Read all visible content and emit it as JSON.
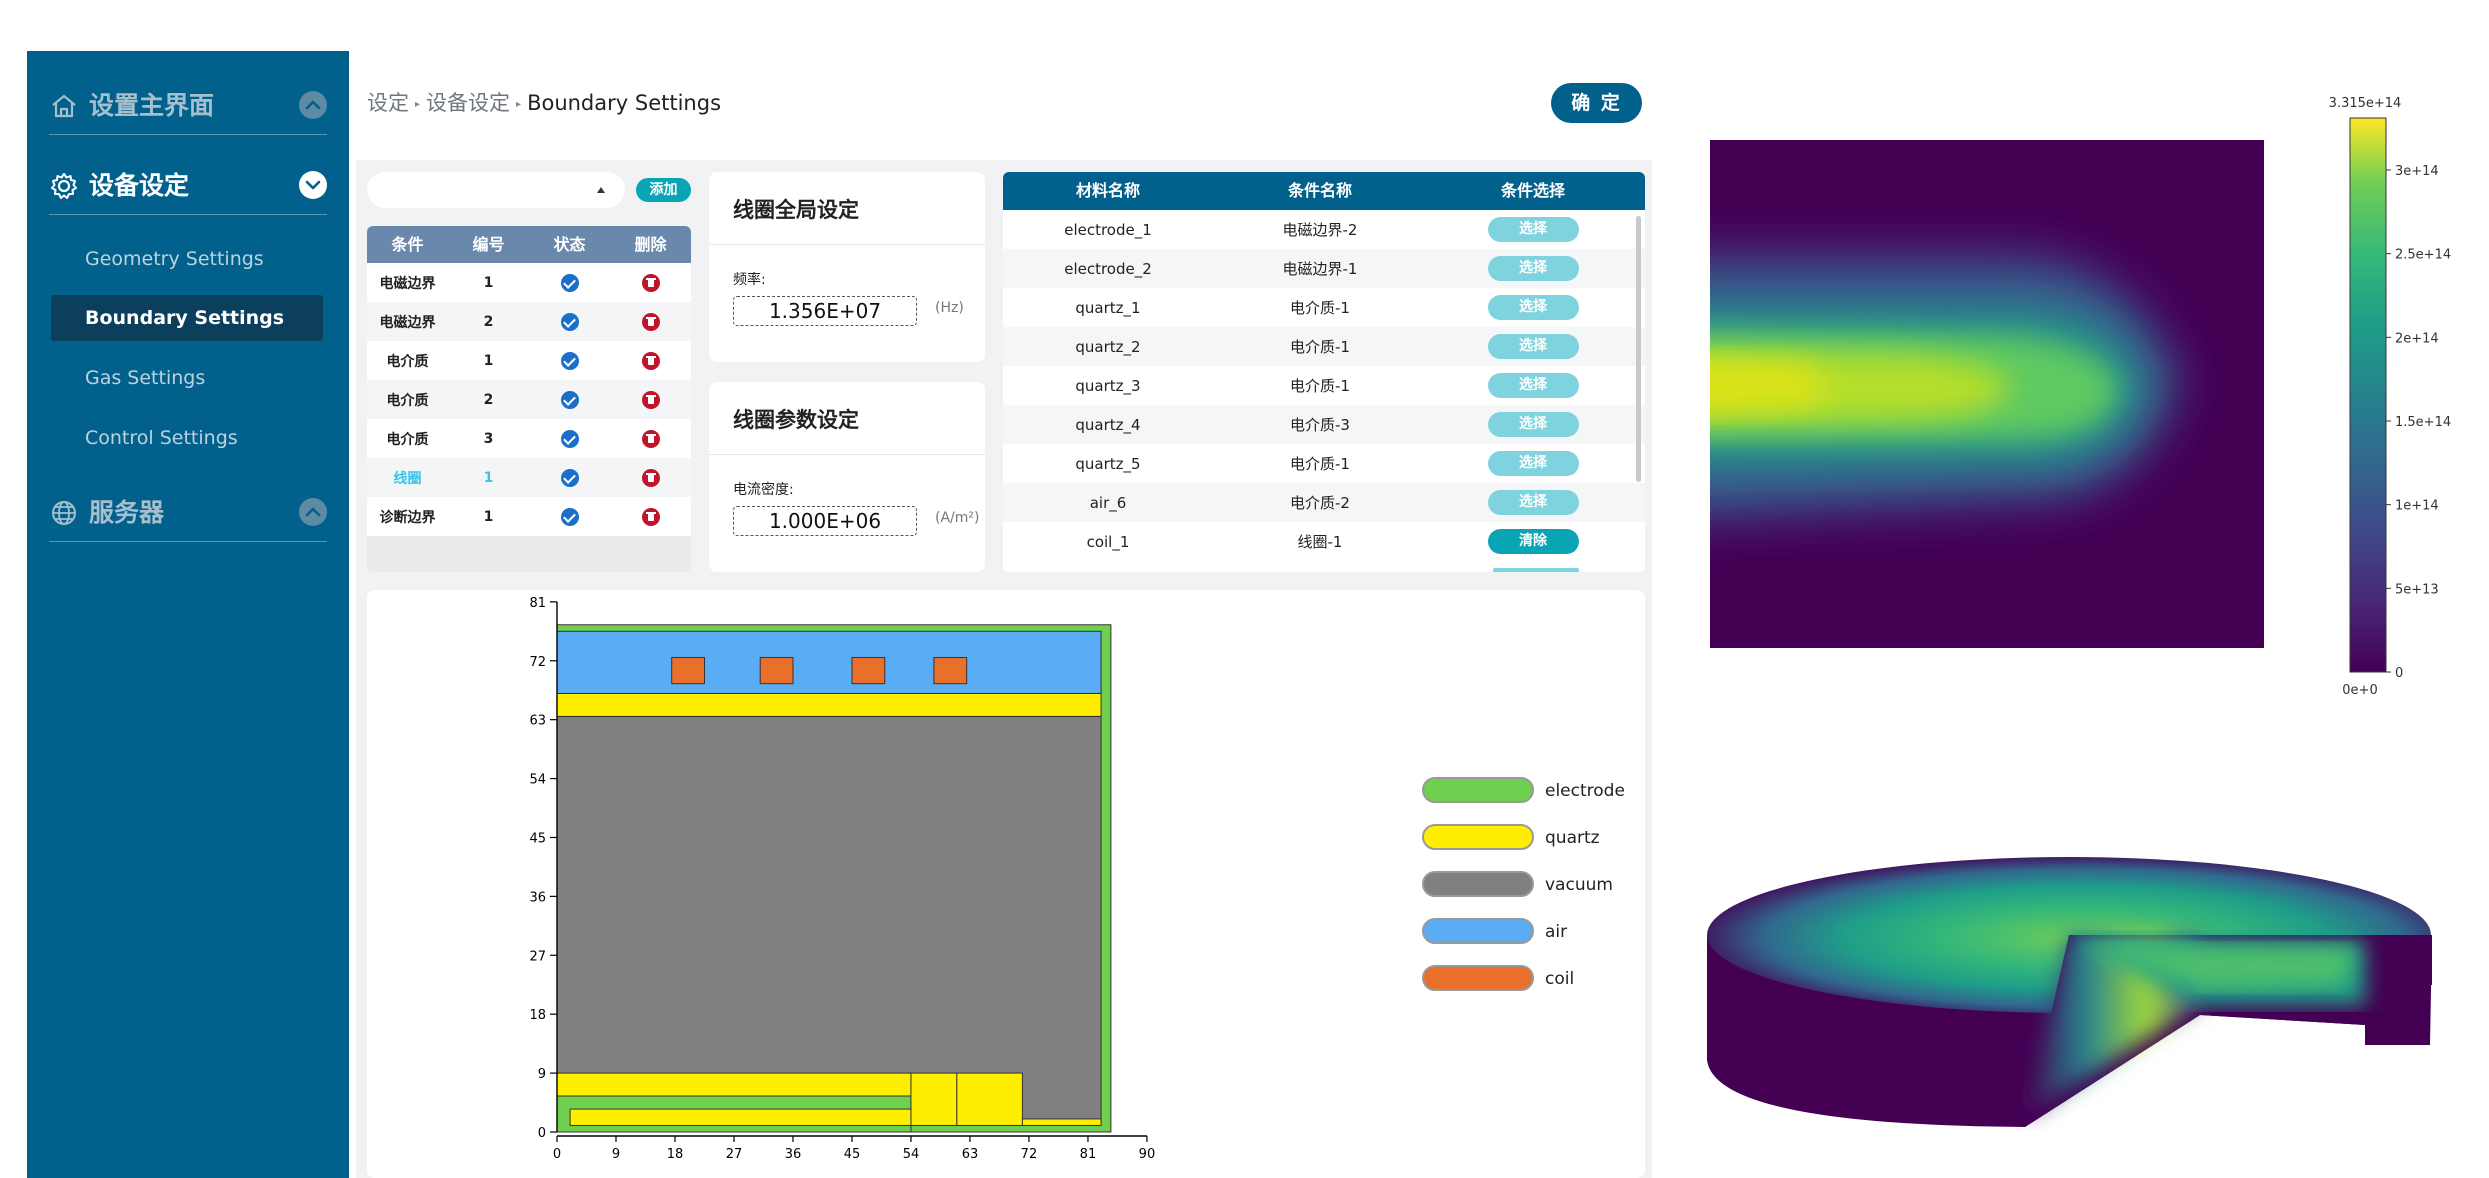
{
  "sidebar": {
    "sections": [
      {
        "label": "设置主界面",
        "icon": "home-icon",
        "expanded": false
      },
      {
        "label": "设备设定",
        "icon": "gear-icon",
        "expanded": true
      },
      {
        "label": "服务器",
        "icon": "globe-icon",
        "expanded": false
      }
    ],
    "sub_items": [
      "Geometry Settings",
      "Boundary Settings",
      "Gas Settings",
      "Control Settings"
    ],
    "active_sub_item": "Boundary Settings"
  },
  "header": {
    "breadcrumb": [
      "设定",
      "设备设定",
      "Boundary Settings"
    ],
    "confirm_label": "确 定"
  },
  "condition_panel": {
    "select_value": "",
    "add_label": "添加",
    "columns": [
      "条件",
      "编号",
      "状态",
      "删除"
    ],
    "rows": [
      {
        "name": "电磁边界",
        "id": "1",
        "highlight": false
      },
      {
        "name": "电磁边界",
        "id": "2",
        "highlight": false
      },
      {
        "name": "电介质",
        "id": "1",
        "highlight": false
      },
      {
        "name": "电介质",
        "id": "2",
        "highlight": false
      },
      {
        "name": "电介质",
        "id": "3",
        "highlight": false
      },
      {
        "name": "线圈",
        "id": "1",
        "highlight": true
      },
      {
        "name": "诊断边界",
        "id": "1",
        "highlight": false
      }
    ]
  },
  "coil_global": {
    "title": "线圈全局设定",
    "field_label": "频率:",
    "value": "1.356E+07",
    "unit": "(Hz)"
  },
  "coil_params": {
    "title": "线圈参数设定",
    "field_label": "电流密度:",
    "value": "1.000E+06",
    "unit": "(A/m²)"
  },
  "material_table": {
    "columns": [
      "材料名称",
      "条件名称",
      "条件选择"
    ],
    "rows": [
      {
        "material": "electrode_1",
        "condition": "电磁边界-2",
        "action": "选择"
      },
      {
        "material": "electrode_2",
        "condition": "电磁边界-1",
        "action": "选择"
      },
      {
        "material": "quartz_1",
        "condition": "电介质-1",
        "action": "选择"
      },
      {
        "material": "quartz_2",
        "condition": "电介质-1",
        "action": "选择"
      },
      {
        "material": "quartz_3",
        "condition": "电介质-1",
        "action": "选择"
      },
      {
        "material": "quartz_4",
        "condition": "电介质-3",
        "action": "选择"
      },
      {
        "material": "quartz_5",
        "condition": "电介质-1",
        "action": "选择"
      },
      {
        "material": "air_6",
        "condition": "电介质-2",
        "action": "选择"
      },
      {
        "material": "coil_1",
        "condition": "线圈-1",
        "action": "清除"
      }
    ]
  },
  "geometry": {
    "x_ticks": [
      "0",
      "9",
      "18",
      "27",
      "36",
      "45",
      "54",
      "63",
      "72",
      "81",
      "90"
    ],
    "y_ticks": [
      "0",
      "9",
      "18",
      "27",
      "36",
      "45",
      "54",
      "63",
      "72",
      "81"
    ],
    "legend": [
      {
        "label": "electrode",
        "color": "#6fcf4f"
      },
      {
        "label": "quartz",
        "color": "#ffee00"
      },
      {
        "label": "vacuum",
        "color": "#808080"
      },
      {
        "label": "air",
        "color": "#5aacf5"
      },
      {
        "label": "coil",
        "color": "#e8702a"
      }
    ]
  },
  "colorbar": {
    "max_label": "3.315e+14",
    "min_label": "0e+0",
    "ticks": [
      "3e+14",
      "2.5e+14",
      "2e+14",
      "1.5e+14",
      "1e+14",
      "5e+13",
      "0"
    ],
    "colormap": "viridis"
  }
}
